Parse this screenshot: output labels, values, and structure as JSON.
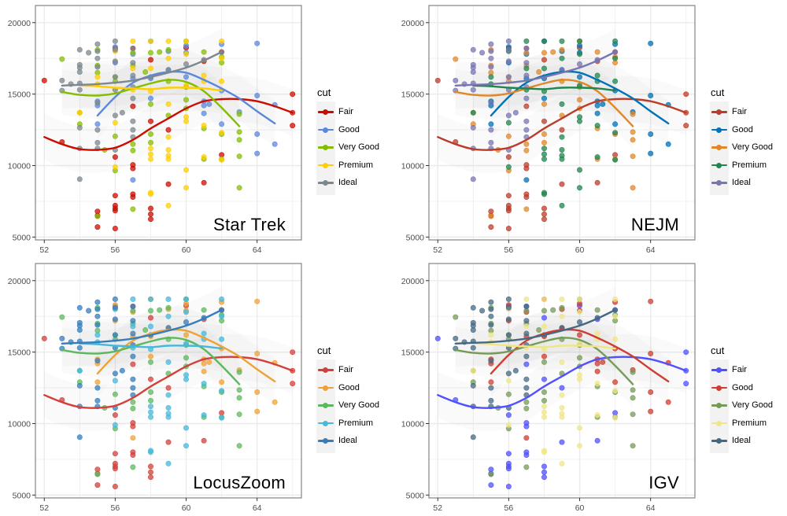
{
  "figure": {
    "description": "Four ggplot2 panels of the same scatter + loess smoother, styled with different journal/tool color palettes",
    "panels": [
      {
        "title": "Star Trek",
        "palette": [
          "#CC0C00",
          "#5C88DA",
          "#84BD00",
          "#FFCD00",
          "#7C878E"
        ]
      },
      {
        "title": "NEJM",
        "palette": [
          "#BC3C29",
          "#0072B5",
          "#E18727",
          "#20854E",
          "#7876B1"
        ]
      },
      {
        "title": "LocusZoom",
        "palette": [
          "#D43F3A",
          "#EEA236",
          "#5CB85C",
          "#46B8DA",
          "#357EBD"
        ]
      },
      {
        "title": "IGV",
        "palette": [
          "#5050FF",
          "#CE3D32",
          "#749B58",
          "#F0E685",
          "#466983"
        ]
      }
    ]
  },
  "chart_data": {
    "type": "scatter",
    "title": "",
    "xlabel": "",
    "ylabel": "",
    "xlim": [
      51.5,
      66.5
    ],
    "ylim": [
      4800,
      21200
    ],
    "x_ticks": [
      52,
      56,
      60,
      64
    ],
    "y_ticks": [
      5000,
      10000,
      15000,
      20000
    ],
    "grid": true,
    "legend": {
      "title": "cut",
      "position": "right",
      "entries": [
        "Fair",
        "Good",
        "Very Good",
        "Premium",
        "Ideal"
      ]
    },
    "series": [
      {
        "name": "Fair",
        "points": [
          [
            52,
            15950
          ],
          [
            53,
            11650
          ],
          [
            55,
            6800
          ],
          [
            55,
            6500
          ],
          [
            55,
            5700
          ],
          [
            56,
            10600
          ],
          [
            56,
            7900
          ],
          [
            56,
            7200
          ],
          [
            56,
            7000
          ],
          [
            56,
            6850
          ],
          [
            56,
            5600
          ],
          [
            56,
            18200
          ],
          [
            57,
            10050
          ],
          [
            57,
            9800
          ],
          [
            57,
            8000
          ],
          [
            57,
            7800
          ],
          [
            57,
            14150
          ],
          [
            57,
            18200
          ],
          [
            58,
            13100
          ],
          [
            58,
            7000
          ],
          [
            58,
            6600
          ],
          [
            58,
            6250
          ],
          [
            58,
            17400
          ],
          [
            59,
            12500
          ],
          [
            59,
            8700
          ],
          [
            60,
            18250
          ],
          [
            61,
            8800
          ],
          [
            61,
            17300
          ],
          [
            62,
            10750
          ],
          [
            62,
            17950
          ],
          [
            66,
            15000
          ],
          [
            66,
            13700
          ],
          [
            66,
            12800
          ]
        ],
        "smooth": [
          [
            52,
            12000
          ],
          [
            53,
            11500
          ],
          [
            54,
            11150
          ],
          [
            55,
            11100
          ],
          [
            56,
            11250
          ],
          [
            57,
            11800
          ],
          [
            58,
            12600
          ],
          [
            59,
            13300
          ],
          [
            60,
            14000
          ],
          [
            61,
            14500
          ],
          [
            62,
            14650
          ],
          [
            63,
            14650
          ],
          [
            64,
            14500
          ],
          [
            65,
            14150
          ],
          [
            66,
            13700
          ]
        ]
      },
      {
        "name": "Good",
        "points": [
          [
            55,
            14200
          ],
          [
            55,
            12900
          ],
          [
            55,
            14500
          ],
          [
            56,
            18300
          ],
          [
            56,
            17200
          ],
          [
            57,
            9000
          ],
          [
            57,
            16100
          ],
          [
            57,
            17800
          ],
          [
            58,
            18700
          ],
          [
            58,
            14700
          ],
          [
            58,
            16100
          ],
          [
            59,
            18000
          ],
          [
            59,
            16700
          ],
          [
            60,
            16200
          ],
          [
            60,
            18400
          ],
          [
            60,
            17900
          ],
          [
            61,
            14500
          ],
          [
            61,
            13650
          ],
          [
            61,
            14200
          ],
          [
            61.3,
            14300
          ],
          [
            62,
            18500
          ],
          [
            62,
            12900
          ],
          [
            62,
            15250
          ],
          [
            63,
            13750
          ],
          [
            64,
            18550
          ],
          [
            64,
            14900
          ],
          [
            64,
            12200
          ],
          [
            64,
            10850
          ],
          [
            65,
            14250
          ],
          [
            65,
            11500
          ]
        ],
        "smooth": [
          [
            55,
            13500
          ],
          [
            56,
            14800
          ],
          [
            57,
            15800
          ],
          [
            58,
            16300
          ],
          [
            59,
            16550
          ],
          [
            60,
            16500
          ],
          [
            61,
            16000
          ],
          [
            62,
            15400
          ],
          [
            63,
            14700
          ],
          [
            64,
            13800
          ],
          [
            65,
            12950
          ]
        ]
      },
      {
        "name": "Very Good",
        "points": [
          [
            53,
            17450
          ],
          [
            54,
            12900
          ],
          [
            54,
            13700
          ],
          [
            55,
            18100
          ],
          [
            55,
            17000
          ],
          [
            55,
            16500
          ],
          [
            55,
            6450
          ],
          [
            55.4,
            11100
          ],
          [
            56,
            16200
          ],
          [
            56,
            12050
          ],
          [
            56,
            9650
          ],
          [
            56,
            15900
          ],
          [
            57,
            17900
          ],
          [
            57,
            17000
          ],
          [
            57,
            11050
          ],
          [
            57,
            11500
          ],
          [
            57,
            6950
          ],
          [
            58,
            17900
          ],
          [
            58,
            12200
          ],
          [
            58,
            11600
          ],
          [
            58.5,
            17950
          ],
          [
            58,
            14300
          ],
          [
            59,
            18100
          ],
          [
            59,
            15900
          ],
          [
            59,
            13500
          ],
          [
            60,
            18700
          ],
          [
            60,
            14000
          ],
          [
            60,
            14600
          ],
          [
            60,
            15500
          ],
          [
            61,
            17950
          ],
          [
            61,
            12600
          ],
          [
            61,
            10450
          ],
          [
            62,
            17600
          ],
          [
            62,
            17200
          ],
          [
            62,
            12200
          ],
          [
            62,
            10450
          ],
          [
            63,
            12350
          ],
          [
            63,
            11800
          ],
          [
            63,
            10650
          ],
          [
            63,
            8450
          ],
          [
            63,
            13600
          ],
          [
            57.7,
            16550
          ]
        ],
        "smooth": [
          [
            53,
            15150
          ],
          [
            54,
            14950
          ],
          [
            55,
            14900
          ],
          [
            56,
            15050
          ],
          [
            57,
            15400
          ],
          [
            58,
            15750
          ],
          [
            59,
            16000
          ],
          [
            60,
            15850
          ],
          [
            61,
            15200
          ],
          [
            62,
            14050
          ],
          [
            63,
            12750
          ]
        ]
      },
      {
        "name": "Premium",
        "points": [
          [
            54,
            13700
          ],
          [
            55,
            16200
          ],
          [
            55,
            15700
          ],
          [
            56,
            18000
          ],
          [
            56,
            13000
          ],
          [
            56,
            9900
          ],
          [
            57,
            18700
          ],
          [
            57,
            16800
          ],
          [
            57,
            15300
          ],
          [
            58,
            18700
          ],
          [
            58,
            16800
          ],
          [
            58,
            15200
          ],
          [
            58,
            11200
          ],
          [
            58,
            10800
          ],
          [
            58,
            10450
          ],
          [
            58,
            8100
          ],
          [
            58,
            8000
          ],
          [
            59,
            18700
          ],
          [
            59,
            17500
          ],
          [
            59,
            14300
          ],
          [
            59,
            12000
          ],
          [
            59,
            11100
          ],
          [
            59,
            10700
          ],
          [
            59,
            10450
          ],
          [
            59,
            7200
          ],
          [
            60,
            18700
          ],
          [
            60,
            17800
          ],
          [
            60,
            15600
          ],
          [
            60,
            13400
          ],
          [
            60,
            13100
          ],
          [
            60,
            9700
          ],
          [
            60,
            8450
          ],
          [
            61,
            16300
          ],
          [
            61,
            15900
          ],
          [
            61,
            12800
          ],
          [
            61,
            10600
          ],
          [
            62,
            18700
          ],
          [
            62,
            17500
          ],
          [
            62,
            15900
          ],
          [
            62,
            12300
          ],
          [
            62,
            10400
          ]
        ],
        "smooth": [
          [
            54,
            15600
          ],
          [
            55,
            15550
          ],
          [
            56,
            15450
          ],
          [
            57,
            15400
          ],
          [
            58,
            15350
          ],
          [
            59,
            15450
          ],
          [
            60,
            15450
          ],
          [
            61,
            15400
          ],
          [
            62,
            15250
          ]
        ]
      },
      {
        "name": "Ideal",
        "points": [
          [
            53,
            15950
          ],
          [
            53,
            15250
          ],
          [
            54,
            18100
          ],
          [
            54,
            17050
          ],
          [
            54,
            16850
          ],
          [
            54,
            16550
          ],
          [
            54,
            15750
          ],
          [
            54,
            15300
          ],
          [
            54,
            12650
          ],
          [
            54,
            11200
          ],
          [
            54,
            9050
          ],
          [
            53.5,
            15700
          ],
          [
            54.5,
            17900
          ],
          [
            55,
            18500
          ],
          [
            55,
            18000
          ],
          [
            55,
            17500
          ],
          [
            55,
            16900
          ],
          [
            55,
            14400
          ],
          [
            55,
            12500
          ],
          [
            55,
            11600
          ],
          [
            55,
            11200
          ],
          [
            56,
            18700
          ],
          [
            56,
            18100
          ],
          [
            56,
            17300
          ],
          [
            56,
            16200
          ],
          [
            56,
            15300
          ],
          [
            56,
            13500
          ],
          [
            56,
            11100
          ],
          [
            56.4,
            13700
          ],
          [
            57,
            18200
          ],
          [
            57,
            17200
          ],
          [
            57,
            16300
          ],
          [
            57,
            15500
          ],
          [
            57,
            14700
          ],
          [
            57,
            13100
          ],
          [
            57,
            12500
          ],
          [
            57,
            12000
          ],
          [
            58,
            16200
          ],
          [
            59,
            16700
          ],
          [
            60,
            17100
          ],
          [
            61,
            17400
          ],
          [
            62,
            17950
          ]
        ],
        "smooth": [
          [
            53,
            15600
          ],
          [
            54,
            15650
          ],
          [
            55,
            15700
          ],
          [
            56,
            15800
          ],
          [
            57,
            15950
          ],
          [
            58,
            16200
          ],
          [
            59,
            16500
          ],
          [
            60,
            16850
          ],
          [
            61,
            17350
          ],
          [
            62,
            17950
          ]
        ]
      }
    ]
  }
}
